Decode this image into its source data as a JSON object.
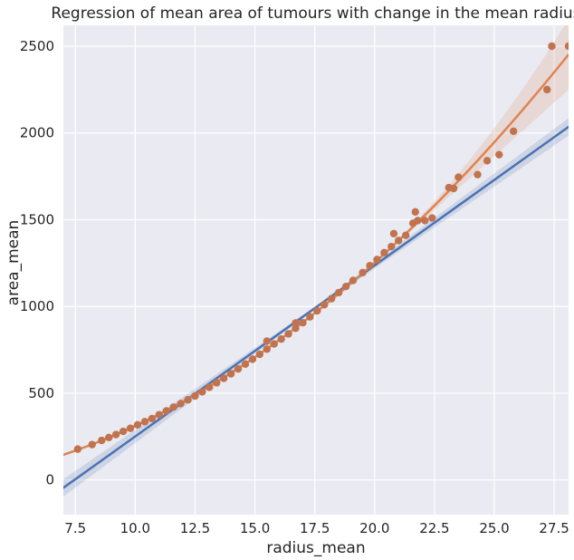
{
  "chart_data": {
    "type": "scatter",
    "title": "Regression of mean area of tumours with change in the mean radius",
    "xlabel": "radius_mean",
    "ylabel": "area_mean",
    "xlim": [
      7.0,
      28.1
    ],
    "ylim": [
      -200,
      2620
    ],
    "xticks": [
      "7.5",
      "10.0",
      "12.5",
      "15.0",
      "17.5",
      "20.0",
      "22.5",
      "25.0",
      "27.5"
    ],
    "yticks": [
      "0",
      "500",
      "1000",
      "1500",
      "2000",
      "2500"
    ],
    "grid": true,
    "colors": {
      "background": "#eaeaf2",
      "grid": "#ffffff",
      "linear_fit": "#4c72b0",
      "poly_fit": "#dd8452",
      "points": "#c07350"
    },
    "series": [
      {
        "kind": "scatter",
        "values": [
          [
            7.6,
            178
          ],
          [
            8.2,
            204
          ],
          [
            8.6,
            228
          ],
          [
            8.9,
            245
          ],
          [
            9.2,
            262
          ],
          [
            9.5,
            280
          ],
          [
            9.8,
            298
          ],
          [
            10.1,
            318
          ],
          [
            10.4,
            336
          ],
          [
            10.7,
            354
          ],
          [
            11.0,
            376
          ],
          [
            11.3,
            398
          ],
          [
            11.6,
            420
          ],
          [
            11.9,
            440
          ],
          [
            12.2,
            462
          ],
          [
            12.5,
            484
          ],
          [
            12.8,
            508
          ],
          [
            13.1,
            534
          ],
          [
            13.4,
            560
          ],
          [
            13.7,
            586
          ],
          [
            14.0,
            612
          ],
          [
            14.3,
            640
          ],
          [
            14.6,
            668
          ],
          [
            14.9,
            696
          ],
          [
            15.2,
            724
          ],
          [
            15.5,
            754
          ],
          [
            15.5,
            800
          ],
          [
            15.8,
            784
          ],
          [
            16.1,
            812
          ],
          [
            16.4,
            842
          ],
          [
            16.7,
            874
          ],
          [
            16.7,
            905
          ],
          [
            17.0,
            906
          ],
          [
            17.3,
            940
          ],
          [
            17.6,
            975
          ],
          [
            17.9,
            1010
          ],
          [
            18.2,
            1045
          ],
          [
            18.5,
            1080
          ],
          [
            18.8,
            1115
          ],
          [
            19.1,
            1150
          ],
          [
            19.5,
            1195
          ],
          [
            19.8,
            1235
          ],
          [
            20.1,
            1270
          ],
          [
            20.4,
            1310
          ],
          [
            20.7,
            1345
          ],
          [
            20.8,
            1420
          ],
          [
            21.0,
            1380
          ],
          [
            21.3,
            1410
          ],
          [
            21.6,
            1480
          ],
          [
            21.7,
            1545
          ],
          [
            21.8,
            1495
          ],
          [
            22.1,
            1495
          ],
          [
            22.4,
            1510
          ],
          [
            23.1,
            1685
          ],
          [
            23.3,
            1680
          ],
          [
            23.5,
            1745
          ],
          [
            24.3,
            1760
          ],
          [
            24.7,
            1840
          ],
          [
            25.2,
            1875
          ],
          [
            25.8,
            2010
          ],
          [
            27.2,
            2250
          ],
          [
            27.4,
            2500
          ],
          [
            28.1,
            2500
          ]
        ]
      },
      {
        "kind": "linear_fit",
        "x": [
          7.0,
          28.1
        ],
        "values": [
          -45,
          2035
        ]
      },
      {
        "kind": "poly_fit",
        "coefficients": [
          3.4,
          0,
          1.5
        ]
      }
    ]
  }
}
